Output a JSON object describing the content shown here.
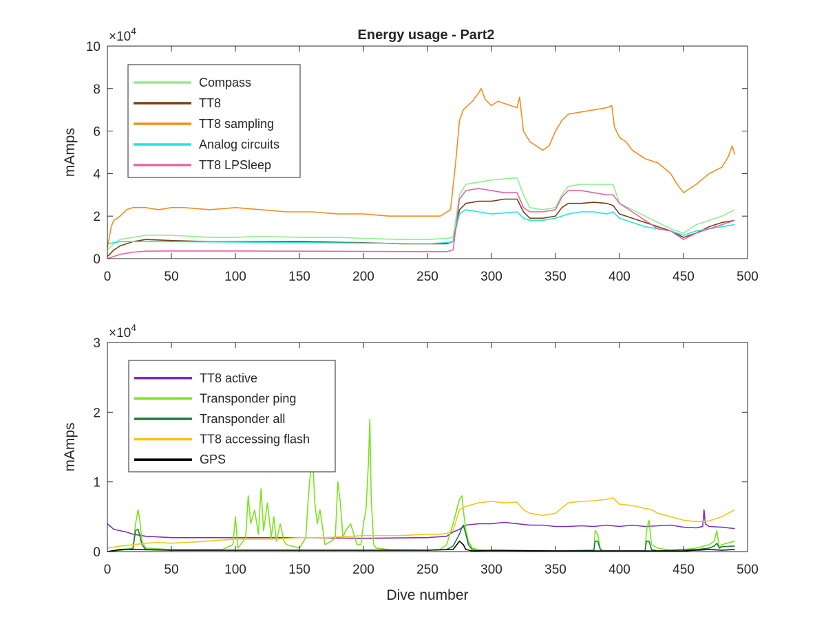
{
  "figure_title": "Energy usage - Part2",
  "chart_data": [
    {
      "type": "line",
      "title": "Energy usage - Part2",
      "xlabel": "",
      "ylabel": "mAmps",
      "xlim": [
        0,
        500
      ],
      "ylim": [
        0,
        100000
      ],
      "y_exponent_label": "×10",
      "y_exponent": "4",
      "xticks": [
        0,
        50,
        100,
        150,
        200,
        250,
        300,
        350,
        400,
        450,
        500
      ],
      "xtick_labels": [
        "0",
        "50",
        "100",
        "150",
        "200",
        "250",
        "300",
        "350",
        "400",
        "450",
        "500"
      ],
      "yticks": [
        0,
        20000,
        40000,
        60000,
        80000,
        100000
      ],
      "ytick_labels": [
        "0",
        "2",
        "4",
        "6",
        "8",
        "10"
      ],
      "grid": false,
      "legend_position": "top-left",
      "series": [
        {
          "name": "Compass",
          "color": "#90ee90",
          "x": [
            0,
            5,
            10,
            20,
            30,
            50,
            80,
            100,
            120,
            150,
            180,
            200,
            230,
            250,
            265,
            270,
            275,
            280,
            290,
            300,
            310,
            320,
            325,
            330,
            340,
            350,
            355,
            360,
            370,
            380,
            390,
            395,
            400,
            410,
            420,
            430,
            440,
            450,
            460,
            470,
            480,
            490
          ],
          "values": [
            4000,
            7000,
            9000,
            10000,
            11000,
            11000,
            10000,
            10000,
            10500,
            10000,
            10000,
            9500,
            9000,
            9000,
            9500,
            10000,
            30000,
            35000,
            36000,
            37000,
            37500,
            38000,
            30000,
            24000,
            23000,
            24000,
            30000,
            34000,
            35000,
            35000,
            35000,
            35000,
            26000,
            23000,
            20000,
            17000,
            14000,
            12000,
            16000,
            18000,
            20000,
            23000
          ]
        },
        {
          "name": "TT8",
          "color": "#7b3f10",
          "x": [
            0,
            5,
            10,
            20,
            30,
            50,
            80,
            100,
            150,
            200,
            230,
            250,
            265,
            270,
            275,
            280,
            290,
            300,
            310,
            320,
            325,
            330,
            340,
            350,
            355,
            360,
            370,
            380,
            390,
            395,
            400,
            410,
            420,
            430,
            440,
            450,
            460,
            470,
            480,
            490
          ],
          "values": [
            1000,
            4000,
            6000,
            8000,
            9000,
            8500,
            8000,
            8000,
            8000,
            7500,
            7000,
            7000,
            7000,
            8000,
            23000,
            26000,
            27000,
            27000,
            28000,
            28000,
            22000,
            19000,
            19000,
            20000,
            24000,
            26000,
            26000,
            26500,
            26000,
            25000,
            21000,
            19000,
            17000,
            15000,
            13000,
            10000,
            12000,
            15000,
            17000,
            18000
          ]
        },
        {
          "name": "TT8 sampling",
          "color": "#f28e1c",
          "x": [
            0,
            3,
            5,
            10,
            15,
            20,
            30,
            40,
            50,
            60,
            80,
            100,
            120,
            140,
            160,
            180,
            200,
            220,
            240,
            260,
            268,
            272,
            275,
            278,
            285,
            290,
            292,
            295,
            300,
            305,
            310,
            315,
            320,
            322,
            325,
            330,
            335,
            340,
            345,
            350,
            355,
            360,
            370,
            380,
            390,
            394,
            396,
            400,
            405,
            410,
            420,
            430,
            440,
            445,
            450,
            455,
            460,
            470,
            480,
            485,
            488,
            490
          ],
          "values": [
            5000,
            15000,
            18000,
            20000,
            23000,
            24000,
            24000,
            23000,
            24000,
            24000,
            23000,
            24000,
            23000,
            22000,
            22000,
            21000,
            21000,
            20000,
            20000,
            20000,
            23000,
            45000,
            65000,
            70000,
            74000,
            78000,
            80000,
            75000,
            72000,
            74000,
            73000,
            72000,
            71000,
            76000,
            60000,
            55000,
            53000,
            51000,
            53000,
            60000,
            65000,
            68000,
            69000,
            70000,
            71000,
            72000,
            62000,
            57000,
            55000,
            51000,
            47000,
            45000,
            40000,
            35000,
            31000,
            33000,
            35000,
            40000,
            43000,
            48000,
            53000,
            49000
          ]
        },
        {
          "name": "Analog circuits",
          "color": "#1fe5e5",
          "x": [
            0,
            5,
            10,
            20,
            50,
            100,
            150,
            200,
            250,
            265,
            270,
            275,
            280,
            290,
            300,
            310,
            320,
            325,
            330,
            340,
            350,
            360,
            370,
            380,
            390,
            395,
            400,
            410,
            420,
            430,
            440,
            450,
            460,
            470,
            480,
            490
          ],
          "values": [
            7000,
            7500,
            8000,
            8000,
            8000,
            7800,
            7500,
            7300,
            7000,
            7500,
            8000,
            21000,
            23000,
            22000,
            21000,
            21500,
            22000,
            19000,
            18000,
            18000,
            19000,
            21000,
            22000,
            22000,
            21000,
            22000,
            19000,
            17000,
            15000,
            14000,
            13000,
            11000,
            13000,
            14000,
            15000,
            16000
          ]
        },
        {
          "name": "TT8 LPSleep",
          "color": "#e464a0",
          "x": [
            0,
            5,
            10,
            20,
            30,
            50,
            100,
            150,
            200,
            250,
            265,
            270,
            275,
            280,
            290,
            300,
            310,
            320,
            325,
            330,
            340,
            350,
            355,
            360,
            370,
            380,
            390,
            395,
            400,
            410,
            420,
            430,
            440,
            450,
            460,
            470,
            480,
            490
          ],
          "values": [
            0,
            1000,
            2000,
            3000,
            3500,
            3600,
            3600,
            3500,
            3400,
            3300,
            3300,
            4000,
            28000,
            32000,
            33000,
            32000,
            31000,
            31000,
            24000,
            22000,
            22000,
            23000,
            29000,
            32000,
            32000,
            31000,
            30000,
            30000,
            26000,
            22000,
            18000,
            14000,
            13000,
            9000,
            12000,
            14000,
            16000,
            18000
          ]
        }
      ]
    },
    {
      "type": "line",
      "title": "",
      "xlabel": "Dive number",
      "ylabel": "mAmps",
      "xlim": [
        0,
        500
      ],
      "ylim": [
        0,
        30000
      ],
      "y_exponent_label": "×10",
      "y_exponent": "4",
      "xticks": [
        0,
        50,
        100,
        150,
        200,
        250,
        300,
        350,
        400,
        450,
        500
      ],
      "xtick_labels": [
        "0",
        "50",
        "100",
        "150",
        "200",
        "250",
        "300",
        "350",
        "400",
        "450",
        "500"
      ],
      "yticks": [
        0,
        10000,
        20000,
        30000
      ],
      "ytick_labels": [
        "0",
        "1",
        "2",
        "3"
      ],
      "grid": false,
      "legend_position": "top-left",
      "series": [
        {
          "name": "TT8 active",
          "color": "#7e2fae",
          "x": [
            0,
            5,
            10,
            15,
            20,
            30,
            50,
            100,
            150,
            200,
            250,
            265,
            270,
            275,
            280,
            290,
            300,
            310,
            320,
            330,
            340,
            350,
            360,
            370,
            380,
            390,
            400,
            410,
            420,
            430,
            440,
            450,
            460,
            465,
            466,
            467,
            470,
            480,
            490
          ],
          "values": [
            4000,
            3200,
            3000,
            2800,
            2500,
            2200,
            2000,
            2000,
            2000,
            1900,
            2000,
            2200,
            2800,
            3200,
            3800,
            4000,
            4000,
            4200,
            4000,
            3800,
            3800,
            3600,
            3600,
            3700,
            3600,
            3800,
            3600,
            3800,
            3600,
            3700,
            3800,
            3500,
            3400,
            3600,
            6000,
            4000,
            3600,
            3500,
            3300
          ]
        },
        {
          "name": "Transponder ping",
          "color": "#7ae31b",
          "x": [
            0,
            10,
            20,
            22,
            24,
            25,
            27,
            30,
            50,
            90,
            98,
            100,
            102,
            108,
            110,
            112,
            115,
            118,
            120,
            122,
            125,
            128,
            130,
            132,
            135,
            138,
            140,
            150,
            155,
            157,
            159,
            160,
            162,
            164,
            166,
            170,
            175,
            178,
            180,
            182,
            184,
            186,
            190,
            195,
            198,
            200,
            202,
            204,
            205,
            206,
            208,
            210,
            220,
            250,
            260,
            265,
            270,
            275,
            277,
            278,
            280,
            282,
            285,
            290,
            300,
            350,
            380,
            381,
            383,
            385,
            387,
            390,
            400,
            420,
            421,
            423,
            425,
            430,
            440,
            450,
            460,
            470,
            474,
            476,
            478,
            480,
            490
          ],
          "values": [
            0,
            300,
            500,
            4000,
            6000,
            5000,
            1500,
            500,
            300,
            300,
            1000,
            5000,
            500,
            2000,
            8000,
            4000,
            6000,
            2500,
            9000,
            3000,
            7000,
            2000,
            5000,
            1500,
            4000,
            1500,
            1000,
            500,
            2000,
            8000,
            12000,
            15000,
            7000,
            4000,
            6000,
            1000,
            1500,
            2000,
            10000,
            7000,
            2000,
            3000,
            4000,
            1000,
            1000,
            4000,
            6000,
            13000,
            19000,
            8000,
            1000,
            500,
            300,
            200,
            300,
            1000,
            4000,
            7500,
            8000,
            6000,
            3000,
            1500,
            500,
            300,
            100,
            100,
            200,
            3000,
            2500,
            400,
            100,
            100,
            100,
            100,
            3000,
            4500,
            1000,
            500,
            200,
            300,
            500,
            1000,
            1500,
            3000,
            500,
            1000,
            1500
          ]
        },
        {
          "name": "Transponder all",
          "color": "#1f7a3d",
          "x": [
            0,
            10,
            20,
            22,
            24,
            25,
            27,
            30,
            50,
            100,
            150,
            200,
            250,
            265,
            270,
            275,
            277,
            278,
            280,
            282,
            285,
            290,
            300,
            350,
            380,
            381,
            383,
            385,
            387,
            390,
            400,
            420,
            421,
            423,
            425,
            430,
            440,
            450,
            460,
            470,
            474,
            476,
            478,
            480,
            490
          ],
          "values": [
            0,
            200,
            400,
            3000,
            3200,
            2500,
            1000,
            300,
            200,
            200,
            200,
            200,
            200,
            300,
            800,
            2500,
            3500,
            3800,
            2500,
            1000,
            300,
            100,
            100,
            100,
            200,
            1500,
            1500,
            300,
            100,
            100,
            100,
            100,
            1500,
            1500,
            300,
            100,
            200,
            300,
            300,
            500,
            800,
            1200,
            500,
            700,
            800
          ]
        },
        {
          "name": "TT8 accessing flash",
          "color": "#f5c518",
          "x": [
            0,
            10,
            20,
            30,
            40,
            50,
            70,
            100,
            130,
            150,
            170,
            200,
            230,
            250,
            260,
            265,
            270,
            275,
            280,
            290,
            300,
            310,
            320,
            325,
            330,
            340,
            350,
            360,
            370,
            380,
            390,
            395,
            400,
            410,
            420,
            425,
            430,
            440,
            450,
            460,
            470,
            480,
            490
          ],
          "values": [
            500,
            800,
            1000,
            1200,
            1300,
            1200,
            1400,
            1800,
            1800,
            2000,
            2000,
            2300,
            2300,
            2500,
            2500,
            2600,
            3000,
            6000,
            6500,
            7000,
            7200,
            7000,
            7100,
            6000,
            5500,
            5200,
            5500,
            7000,
            7200,
            7300,
            7500,
            7700,
            6800,
            6600,
            6200,
            6000,
            5500,
            5000,
            4500,
            4300,
            4400,
            5000,
            6000
          ]
        },
        {
          "name": "GPS",
          "color": "#000000",
          "x": [
            0,
            10,
            20,
            50,
            100,
            150,
            200,
            250,
            270,
            275,
            278,
            280,
            285,
            300,
            350,
            400,
            450,
            460,
            470,
            480,
            490
          ],
          "values": [
            0,
            300,
            300,
            200,
            200,
            200,
            200,
            200,
            300,
            1500,
            1000,
            300,
            100,
            200,
            100,
            100,
            100,
            200,
            300,
            200,
            300
          ]
        }
      ]
    }
  ]
}
